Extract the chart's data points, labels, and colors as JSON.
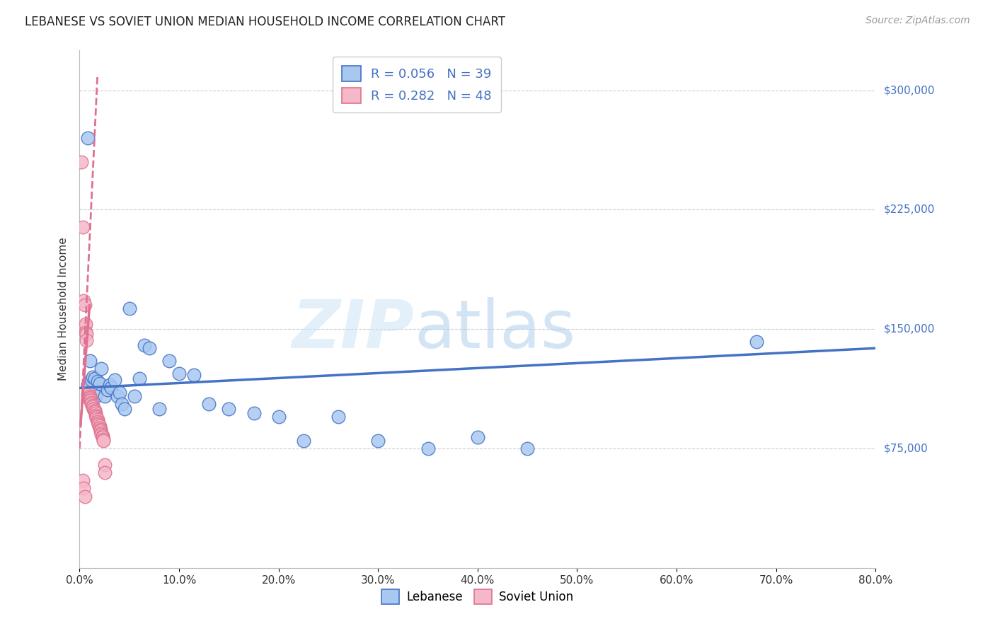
{
  "title": "LEBANESE VS SOVIET UNION MEDIAN HOUSEHOLD INCOME CORRELATION CHART",
  "source": "Source: ZipAtlas.com",
  "ylabel": "Median Household Income",
  "y_ticks": [
    75000,
    150000,
    225000,
    300000
  ],
  "y_tick_labels": [
    "$75,000",
    "$150,000",
    "$225,000",
    "$300,000"
  ],
  "legend": {
    "R_lebanese": "0.056",
    "N_lebanese": "39",
    "R_soviet": "0.282",
    "N_soviet": "48"
  },
  "lebanese_color": "#a8c8f0",
  "lebanese_line_color": "#4472c4",
  "soviet_color": "#f4b8c8",
  "soviet_line_color": "#e07090",
  "lebanese_x": [
    0.008,
    0.01,
    0.012,
    0.013,
    0.015,
    0.016,
    0.018,
    0.02,
    0.022,
    0.025,
    0.028,
    0.03,
    0.032,
    0.035,
    0.038,
    0.04,
    0.042,
    0.045,
    0.05,
    0.055,
    0.06,
    0.065,
    0.07,
    0.08,
    0.09,
    0.1,
    0.115,
    0.13,
    0.15,
    0.175,
    0.2,
    0.225,
    0.26,
    0.3,
    0.35,
    0.4,
    0.45,
    0.68,
    0.008
  ],
  "lebanese_y": [
    115000,
    130000,
    118000,
    120000,
    119000,
    108000,
    117000,
    116000,
    125000,
    108000,
    112000,
    115000,
    113000,
    118000,
    108000,
    110000,
    103000,
    100000,
    163000,
    108000,
    119000,
    140000,
    138000,
    100000,
    130000,
    122000,
    121000,
    103000,
    100000,
    97000,
    95000,
    80000,
    95000,
    80000,
    75000,
    82000,
    75000,
    142000,
    270000
  ],
  "soviet_x": [
    0.002,
    0.003,
    0.004,
    0.005,
    0.005,
    0.006,
    0.006,
    0.007,
    0.007,
    0.008,
    0.008,
    0.009,
    0.009,
    0.01,
    0.01,
    0.011,
    0.011,
    0.012,
    0.012,
    0.013,
    0.013,
    0.014,
    0.014,
    0.015,
    0.015,
    0.016,
    0.016,
    0.017,
    0.017,
    0.018,
    0.018,
    0.019,
    0.019,
    0.02,
    0.02,
    0.021,
    0.021,
    0.022,
    0.022,
    0.023,
    0.023,
    0.024,
    0.024,
    0.025,
    0.025,
    0.003,
    0.004,
    0.005
  ],
  "soviet_y": [
    255000,
    214000,
    168000,
    165000,
    152000,
    153000,
    148000,
    147000,
    143000,
    109000,
    107000,
    108000,
    110000,
    108000,
    107000,
    106000,
    105000,
    104000,
    103000,
    102000,
    101000,
    100000,
    100000,
    99000,
    98000,
    97000,
    96000,
    95000,
    94000,
    93000,
    92000,
    91000,
    90000,
    89000,
    88000,
    87000,
    86000,
    85000,
    84000,
    83000,
    82000,
    81000,
    80000,
    65000,
    60000,
    55000,
    50000,
    45000
  ]
}
